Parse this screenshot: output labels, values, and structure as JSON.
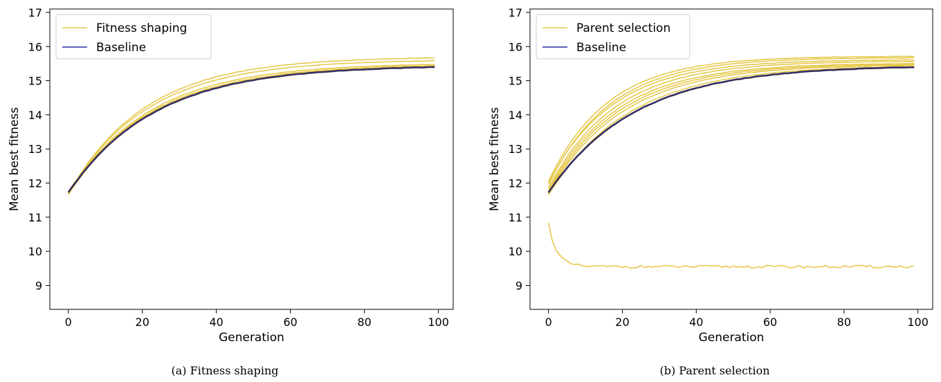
{
  "colors": {
    "variant": "#e6c94e",
    "baseline": "#2a2aa6",
    "baseline_overlay": "#3a3040",
    "axis": "#000000"
  },
  "chart_data": [
    {
      "type": "line",
      "title": "",
      "caption": "(a) Fitness shaping",
      "xlabel": "Generation",
      "ylabel": "Mean best fitness",
      "xlim": [
        -5,
        104
      ],
      "ylim": [
        8.3,
        17.1
      ],
      "xticks": [
        0,
        20,
        40,
        60,
        80,
        100
      ],
      "yticks": [
        9,
        10,
        11,
        12,
        13,
        14,
        15,
        16,
        17
      ],
      "legend_position": "top-left",
      "legend": [
        {
          "label": "Fitness shaping",
          "color_key": "variant"
        },
        {
          "label": "Baseline",
          "color_key": "baseline"
        }
      ],
      "x_range": [
        0,
        99
      ],
      "series": [
        {
          "name": "Fitness shaping",
          "role": "variant",
          "start": 11.68,
          "end": 15.7,
          "rate": 0.048
        },
        {
          "role": "variant",
          "start": 11.7,
          "end": 15.62,
          "rate": 0.047
        },
        {
          "role": "variant",
          "start": 11.72,
          "end": 15.52,
          "rate": 0.045
        },
        {
          "role": "variant",
          "start": 11.66,
          "end": 15.49,
          "rate": 0.044
        },
        {
          "role": "variant",
          "start": 11.75,
          "end": 15.47,
          "rate": 0.044
        },
        {
          "name": "Baseline",
          "role": "baseline",
          "start": 11.72,
          "end": 15.45,
          "rate": 0.043
        }
      ]
    },
    {
      "type": "line",
      "title": "",
      "caption": "(b) Parent selection",
      "xlabel": "Generation",
      "ylabel": "Mean best fitness",
      "xlim": [
        -5,
        104
      ],
      "ylim": [
        8.3,
        17.1
      ],
      "xticks": [
        0,
        20,
        40,
        60,
        80,
        100
      ],
      "yticks": [
        9,
        10,
        11,
        12,
        13,
        14,
        15,
        16,
        17
      ],
      "legend_position": "top-left",
      "legend": [
        {
          "label": "Parent selection",
          "color_key": "variant"
        },
        {
          "label": "Baseline",
          "color_key": "baseline"
        }
      ],
      "x_range": [
        0,
        99
      ],
      "series": [
        {
          "name": "Parent selection",
          "role": "variant",
          "start": 12.05,
          "end": 15.72,
          "rate": 0.062
        },
        {
          "role": "variant",
          "start": 11.95,
          "end": 15.68,
          "rate": 0.06
        },
        {
          "role": "variant",
          "start": 12.0,
          "end": 15.62,
          "rate": 0.058
        },
        {
          "role": "variant",
          "start": 11.85,
          "end": 15.58,
          "rate": 0.056
        },
        {
          "role": "variant",
          "start": 11.8,
          "end": 15.52,
          "rate": 0.054
        },
        {
          "role": "variant",
          "start": 11.75,
          "end": 15.5,
          "rate": 0.052
        },
        {
          "role": "variant",
          "start": 11.7,
          "end": 15.48,
          "rate": 0.05
        },
        {
          "role": "variant",
          "start": 11.65,
          "end": 15.46,
          "rate": 0.046
        },
        {
          "role": "variant",
          "start": 10.82,
          "end": 9.55,
          "rate": 0.45,
          "noise": 0.04
        },
        {
          "name": "Baseline",
          "role": "baseline",
          "start": 11.72,
          "end": 15.45,
          "rate": 0.043
        }
      ]
    }
  ]
}
